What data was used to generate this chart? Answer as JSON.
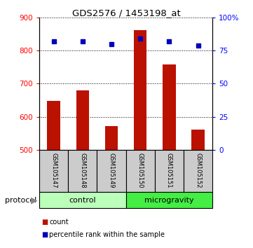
{
  "title": "GDS2576 / 1453198_at",
  "samples": [
    "GSM105147",
    "GSM105148",
    "GSM105149",
    "GSM105150",
    "GSM105151",
    "GSM105152"
  ],
  "counts": [
    648,
    680,
    572,
    862,
    757,
    562
  ],
  "percentile_ranks": [
    82,
    82,
    80,
    84,
    82,
    79
  ],
  "ylim_left": [
    500,
    900
  ],
  "ylim_right": [
    0,
    100
  ],
  "yticks_left": [
    500,
    600,
    700,
    800,
    900
  ],
  "yticks_right": [
    0,
    25,
    50,
    75,
    100
  ],
  "ytick_labels_right": [
    "0",
    "25",
    "50",
    "75",
    "100%"
  ],
  "bar_color": "#bb1100",
  "dot_color": "#0000bb",
  "bar_width": 0.45,
  "groups": [
    {
      "label": "control",
      "n": 3,
      "color": "#bbffbb"
    },
    {
      "label": "microgravity",
      "n": 3,
      "color": "#44ee44"
    }
  ],
  "protocol_label": "protocol",
  "legend_items": [
    {
      "label": "count",
      "color": "#bb1100"
    },
    {
      "label": "percentile rank within the sample",
      "color": "#0000bb"
    }
  ],
  "cell_color": "#cccccc",
  "fig_w": 3.61,
  "fig_h": 3.54,
  "dpi": 100
}
